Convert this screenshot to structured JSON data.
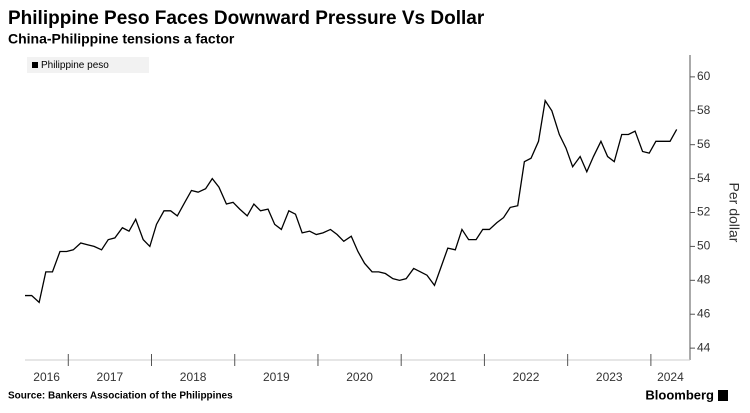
{
  "chart_data": {
    "type": "line",
    "title": "Philippine Peso Faces Downward Pressure Vs Dollar",
    "subtitle": "China-Philippine tensions a factor",
    "y_label": "Per dollar",
    "source": "Source: Bankers Association of the Philippines",
    "brand": "Bloomberg",
    "x": [
      2016.48,
      2016.56,
      2016.65,
      2016.73,
      2016.81,
      2016.9,
      2016.98,
      2017.06,
      2017.15,
      2017.23,
      2017.31,
      2017.4,
      2017.48,
      2017.56,
      2017.65,
      2017.73,
      2017.81,
      2017.9,
      2017.98,
      2018.06,
      2018.15,
      2018.23,
      2018.31,
      2018.4,
      2018.48,
      2018.56,
      2018.65,
      2018.73,
      2018.81,
      2018.9,
      2018.98,
      2019.06,
      2019.15,
      2019.23,
      2019.31,
      2019.4,
      2019.48,
      2019.56,
      2019.65,
      2019.73,
      2019.81,
      2019.9,
      2019.98,
      2020.06,
      2020.15,
      2020.23,
      2020.31,
      2020.4,
      2020.48,
      2020.56,
      2020.65,
      2020.73,
      2020.81,
      2020.9,
      2020.98,
      2021.06,
      2021.15,
      2021.23,
      2021.31,
      2021.4,
      2021.48,
      2021.56,
      2021.65,
      2021.73,
      2021.81,
      2021.9,
      2021.98,
      2022.06,
      2022.15,
      2022.23,
      2022.31,
      2022.4,
      2022.48,
      2022.56,
      2022.65,
      2022.73,
      2022.81,
      2022.9,
      2022.98,
      2023.06,
      2023.15,
      2023.23,
      2023.31,
      2023.4,
      2023.48,
      2023.56,
      2023.65,
      2023.73,
      2023.81,
      2023.9,
      2023.98,
      2024.06,
      2024.15,
      2024.23,
      2024.31
    ],
    "series": [
      {
        "name": "Philippine peso",
        "color": "#000000",
        "values": [
          47.1,
          47.1,
          46.7,
          48.5,
          48.5,
          49.7,
          49.7,
          49.8,
          50.2,
          50.1,
          50.0,
          49.8,
          50.4,
          50.5,
          51.1,
          50.9,
          51.6,
          50.4,
          50.0,
          51.3,
          52.1,
          52.1,
          51.8,
          52.6,
          53.3,
          53.2,
          53.4,
          54.0,
          53.5,
          52.5,
          52.6,
          52.2,
          51.8,
          52.5,
          52.1,
          52.2,
          51.3,
          51.0,
          52.1,
          51.9,
          50.8,
          50.9,
          50.7,
          50.8,
          51.0,
          50.7,
          50.3,
          50.6,
          49.7,
          49.0,
          48.5,
          48.5,
          48.4,
          48.1,
          48.0,
          48.1,
          48.7,
          48.5,
          48.3,
          47.7,
          48.8,
          49.9,
          49.8,
          51.0,
          50.4,
          50.4,
          51.0,
          51.0,
          51.4,
          51.7,
          52.3,
          52.4,
          55.0,
          55.2,
          56.2,
          58.6,
          58.0,
          56.6,
          55.8,
          54.7,
          55.3,
          54.4,
          55.3,
          56.2,
          55.3,
          55.0,
          56.6,
          56.6,
          56.8,
          55.6,
          55.5,
          56.2,
          56.2,
          56.2,
          56.9
        ]
      }
    ],
    "xlim": [
      2016.48,
      2024.47
    ],
    "xticks": [
      2016,
      2017,
      2018,
      2019,
      2020,
      2021,
      2022,
      2023,
      2024
    ],
    "ylim": [
      43.3,
      60.7
    ],
    "yticks": [
      44,
      46,
      48,
      50,
      52,
      54,
      56,
      58,
      60
    ],
    "legend": "top-left"
  }
}
